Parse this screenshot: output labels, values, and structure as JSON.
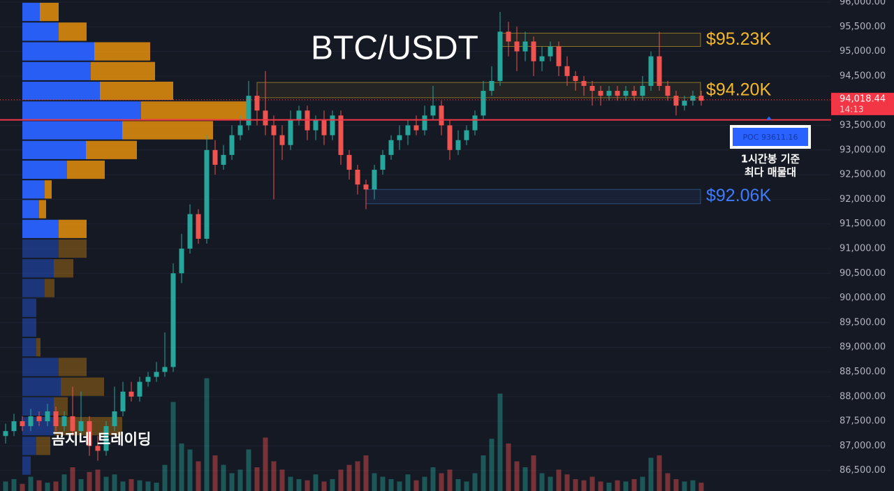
{
  "chart_data": {
    "type": "candlestick",
    "title": "BTC/USDT",
    "watermark": "곰지네 트레이딩",
    "ylim": [
      86085,
      96042
    ],
    "yticks": [
      {
        "value": 86500,
        "label": "86,500.00"
      },
      {
        "value": 87000,
        "label": "87,000.00"
      },
      {
        "value": 87500,
        "label": "87,500.00"
      },
      {
        "value": 88000,
        "label": "88,000.00"
      },
      {
        "value": 88500,
        "label": "88,500.00"
      },
      {
        "value": 89000,
        "label": "89,000.00"
      },
      {
        "value": 89500,
        "label": "89,500.00"
      },
      {
        "value": 90000,
        "label": "90,000.00"
      },
      {
        "value": 90500,
        "label": "90,500.00"
      },
      {
        "value": 91000,
        "label": "91,000.00"
      },
      {
        "value": 91500,
        "label": "91,500.00"
      },
      {
        "value": 92000,
        "label": "92,000.00"
      },
      {
        "value": 92500,
        "label": "92,500.00"
      },
      {
        "value": 93000,
        "label": "93,000.00"
      },
      {
        "value": 93500,
        "label": "93,500.00"
      },
      {
        "value": 94000,
        "label": "94,000.00"
      },
      {
        "value": 94500,
        "label": "94,500.00"
      },
      {
        "value": 95000,
        "label": "95,000.00"
      },
      {
        "value": 95500,
        "label": "95,500.00"
      },
      {
        "value": 96000,
        "label": "96,000.00"
      }
    ],
    "grid": true,
    "up_color": "#26a69a",
    "down_color": "#ef5350",
    "open": [
      87200,
      87300,
      87500,
      87400,
      87600,
      87500,
      87700,
      87400,
      87600,
      87300,
      87500,
      87000,
      86900,
      87400,
      87700,
      88100,
      88000,
      88300,
      88400,
      88500,
      88600,
      90500,
      91000,
      91700,
      91200,
      93000,
      92700,
      92900,
      93300,
      93500,
      94100,
      93800,
      93500,
      93300,
      93100,
      93600,
      93800,
      93400,
      93600,
      93300,
      93700,
      92900,
      92600,
      92300,
      92200,
      92600,
      92900,
      93200,
      93300,
      93500,
      93400,
      93700,
      93900,
      93500,
      93000,
      93200,
      93400,
      93700,
      94200,
      94400,
      95400,
      95200,
      95000,
      95200,
      94800,
      94900,
      95100,
      94700,
      94500,
      94400,
      94300,
      94200,
      94100,
      94200,
      94100,
      94200,
      94100,
      94300,
      94900,
      94300,
      94100,
      93900,
      94000,
      94100
    ],
    "high": [
      87450,
      87650,
      87600,
      87750,
      87700,
      87850,
      87800,
      87700,
      88200,
      88100,
      87600,
      87200,
      87500,
      88200,
      88300,
      88300,
      88400,
      88500,
      88700,
      89300,
      90700,
      91300,
      91900,
      91800,
      93300,
      93200,
      93100,
      93500,
      93700,
      94400,
      94200,
      94600,
      93700,
      93500,
      93800,
      93900,
      93900,
      93700,
      93800,
      93800,
      93800,
      93000,
      92700,
      92400,
      92700,
      93000,
      93300,
      93500,
      93600,
      93700,
      93900,
      94300,
      94000,
      93600,
      93400,
      93500,
      93800,
      94400,
      94700,
      95800,
      95600,
      95500,
      95400,
      95300,
      95100,
      95200,
      95200,
      94900,
      94600,
      94500,
      94400,
      94300,
      94300,
      94300,
      94300,
      94300,
      94500,
      95000,
      95400,
      94400,
      94200,
      94100,
      94200,
      94200
    ],
    "low": [
      87050,
      87200,
      87300,
      87300,
      87400,
      87400,
      87300,
      87300,
      87200,
      87200,
      86800,
      86700,
      86800,
      87300,
      87600,
      87900,
      87900,
      88200,
      88300,
      88400,
      88500,
      90300,
      90900,
      91100,
      91100,
      92500,
      92600,
      92800,
      93200,
      93400,
      93500,
      93300,
      92000,
      92800,
      93000,
      93500,
      93200,
      93200,
      93100,
      93200,
      92700,
      92400,
      92100,
      91800,
      92000,
      92500,
      92800,
      93000,
      93100,
      93300,
      93300,
      93600,
      93300,
      92800,
      92900,
      93100,
      93300,
      93600,
      94100,
      94300,
      94900,
      94600,
      94800,
      94500,
      94600,
      94800,
      94500,
      94300,
      94200,
      94100,
      93900,
      93900,
      94000,
      94000,
      94000,
      94000,
      94000,
      94200,
      94200,
      94000,
      93700,
      93800,
      93900,
      93900
    ],
    "close": [
      87300,
      87500,
      87400,
      87600,
      87500,
      87700,
      87400,
      87600,
      87300,
      87500,
      87000,
      86900,
      87400,
      87700,
      88100,
      88000,
      88300,
      88400,
      88500,
      88600,
      90500,
      91000,
      91700,
      91200,
      93000,
      92700,
      92900,
      93300,
      93500,
      94100,
      93800,
      93500,
      93300,
      93100,
      93600,
      93800,
      93400,
      93600,
      93300,
      93700,
      92900,
      92600,
      92300,
      92200,
      92600,
      92900,
      93200,
      93300,
      93500,
      93400,
      93700,
      93900,
      93500,
      93000,
      93200,
      93400,
      93700,
      94200,
      94400,
      95400,
      95200,
      95000,
      95200,
      94800,
      94900,
      95100,
      94700,
      94500,
      94400,
      94300,
      94200,
      94100,
      94200,
      94100,
      94200,
      94100,
      94300,
      94900,
      94300,
      94100,
      93900,
      94000,
      94100,
      94000
    ],
    "volume": [
      8,
      10,
      6,
      12,
      9,
      7,
      8,
      14,
      20,
      10,
      16,
      18,
      12,
      14,
      8,
      10,
      9,
      8,
      7,
      22,
      75,
      40,
      35,
      25,
      95,
      30,
      22,
      15,
      18,
      35,
      20,
      45,
      25,
      18,
      12,
      10,
      9,
      14,
      8,
      10,
      18,
      22,
      25,
      30,
      15,
      12,
      10,
      8,
      14,
      9,
      12,
      20,
      15,
      18,
      10,
      8,
      15,
      30,
      44,
      82,
      40,
      25,
      20,
      30,
      15,
      12,
      18,
      14,
      10,
      9,
      12,
      8,
      7,
      9,
      8,
      10,
      12,
      28,
      30,
      15,
      10,
      8,
      9,
      7
    ],
    "vlim": [
      0,
      100
    ],
    "profile": {
      "bins": [
        86400,
        86800,
        87200,
        87600,
        88000,
        88400,
        88800,
        89200,
        89600,
        90000,
        90400,
        90800,
        91200,
        91600,
        92000,
        92400,
        92800,
        93200,
        93600,
        94000,
        94400,
        94800,
        95200,
        95600,
        96000
      ],
      "buy": [
        12,
        20,
        45,
        45,
        55,
        52,
        20,
        20,
        20,
        32,
        45,
        52,
        52,
        24,
        32,
        64,
        91,
        143,
        170,
        111,
        98,
        103,
        52,
        25
      ],
      "sell": [
        0,
        20,
        98,
        20,
        62,
        40,
        6,
        0,
        0,
        14,
        28,
        40,
        40,
        10,
        10,
        54,
        73,
        130,
        155,
        105,
        92,
        80,
        40,
        27
      ],
      "xlim": [
        0,
        400
      ],
      "buy_color": "#2962ff",
      "sell_color": "#f0960a",
      "value_area": [
        91200,
        96000
      ]
    },
    "poc": {
      "value": 93611.16,
      "label": "POC  93611.16",
      "note": [
        "1시간봉 기준",
        "최다 매물대"
      ],
      "color": "#f23645"
    },
    "last_price": {
      "value": 94018.44,
      "label": "94,018.44",
      "time": "14:13"
    },
    "zones": [
      {
        "label": "$95.23K",
        "value": 95230,
        "low": 95100,
        "high": 95370,
        "start": 59,
        "color": "#f5b829"
      },
      {
        "label": "$94.20K",
        "value": 94200,
        "low": 94060,
        "high": 94370,
        "start": 30,
        "color": "#f5b829"
      },
      {
        "label": "$92.06K",
        "value": 92060,
        "low": 91910,
        "high": 92200,
        "start": 43,
        "color": "#3d7bff"
      }
    ]
  }
}
